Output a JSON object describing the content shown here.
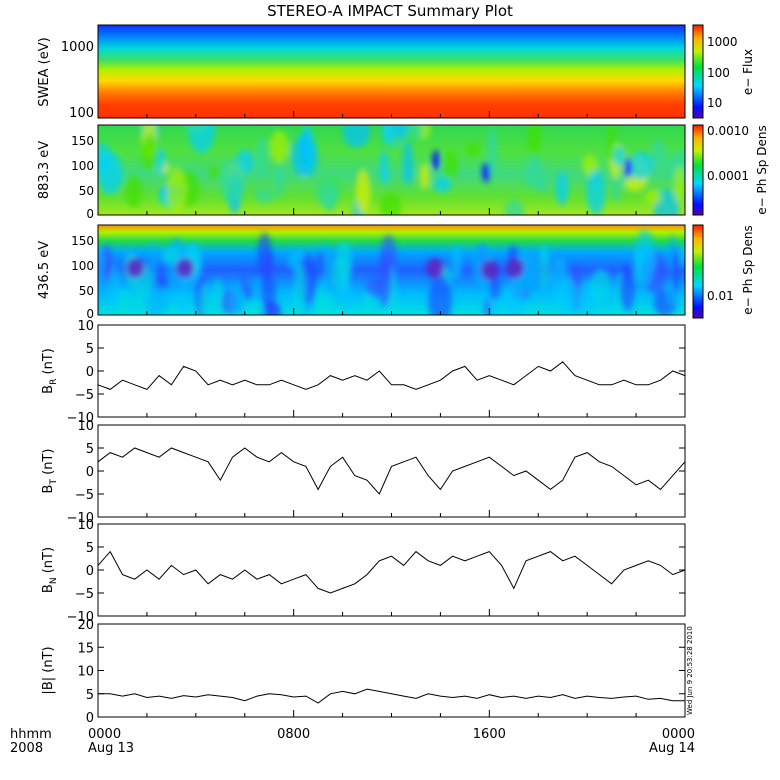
{
  "title": "STEREO-A IMPACT Summary Plot",
  "footer": {
    "time_label": "hhmm",
    "year_label": "2008",
    "x_ticks": [
      {
        "label": "0000",
        "sub": "Aug 13",
        "t": 0
      },
      {
        "label": "0800",
        "sub": "",
        "t": 8
      },
      {
        "label": "1600",
        "sub": "",
        "t": 16
      },
      {
        "label": "0000",
        "sub": "Aug 14",
        "t": 24
      }
    ],
    "timestamp": "Wed Jun 9 20:53:28 2010"
  },
  "chart_data": [
    {
      "id": "swea",
      "type": "heatmap",
      "ylabel": "SWEA (eV)",
      "y_ticks": [
        "1000",
        "100"
      ],
      "colorbar": {
        "label": "e− Flux",
        "ticks": [
          "1000",
          "100",
          "10"
        ]
      }
    },
    {
      "id": "pad883",
      "type": "heatmap",
      "ylabel": "883.3 eV",
      "y_ticks": [
        "150",
        "100",
        "50",
        "0"
      ],
      "ylim": [
        0,
        180
      ],
      "colorbar": {
        "label": "e− Ph Sp Dens",
        "ticks": [
          "0.0010",
          "0.0001"
        ]
      }
    },
    {
      "id": "pad436",
      "type": "heatmap",
      "ylabel": "436.5 eV",
      "y_ticks": [
        "150",
        "100",
        "50",
        "0"
      ],
      "ylim": [
        0,
        180
      ],
      "colorbar": {
        "label": "e− Ph Sp Dens",
        "ticks": [
          "0.01"
        ]
      }
    },
    {
      "id": "br",
      "type": "line",
      "ylabel": "B",
      "ylabel_sub": "R",
      "ylabel_unit": " (nT)",
      "ylim": [
        -10,
        10
      ],
      "y_ticks": [
        "10",
        "5",
        "0",
        "−5",
        "−10"
      ],
      "x": [
        0,
        0.5,
        1,
        1.5,
        2,
        2.5,
        3,
        3.5,
        4,
        4.5,
        5,
        5.5,
        6,
        6.5,
        7,
        7.5,
        8,
        8.5,
        9,
        9.5,
        10,
        10.5,
        11,
        11.5,
        12,
        12.5,
        13,
        13.5,
        14,
        14.5,
        15,
        15.5,
        16,
        16.5,
        17,
        17.5,
        18,
        18.5,
        19,
        19.5,
        20,
        20.5,
        21,
        21.5,
        22,
        22.5,
        23,
        23.5,
        24
      ],
      "y": [
        -3,
        -4,
        -2,
        -3,
        -4,
        -1,
        -3,
        1,
        0,
        -3,
        -2,
        -3,
        -2,
        -3,
        -3,
        -2,
        -3,
        -4,
        -3,
        -1,
        -2,
        -1,
        -2,
        0,
        -3,
        -3,
        -4,
        -3,
        -2,
        0,
        1,
        -2,
        -1,
        -2,
        -3,
        -1,
        1,
        0,
        2,
        -1,
        -2,
        -3,
        -3,
        -2,
        -3,
        -3,
        -2,
        0,
        -1
      ]
    },
    {
      "id": "bt",
      "type": "line",
      "ylabel": "B",
      "ylabel_sub": "T",
      "ylabel_unit": " (nT)",
      "ylim": [
        -10,
        10
      ],
      "y_ticks": [
        "10",
        "5",
        "0",
        "−5",
        "−10"
      ],
      "x": [
        0,
        0.5,
        1,
        1.5,
        2,
        2.5,
        3,
        3.5,
        4,
        4.5,
        5,
        5.5,
        6,
        6.5,
        7,
        7.5,
        8,
        8.5,
        9,
        9.5,
        10,
        10.5,
        11,
        11.5,
        12,
        12.5,
        13,
        13.5,
        14,
        14.5,
        15,
        15.5,
        16,
        16.5,
        17,
        17.5,
        18,
        18.5,
        19,
        19.5,
        20,
        20.5,
        21,
        21.5,
        22,
        22.5,
        23,
        23.5,
        24
      ],
      "y": [
        2,
        4,
        3,
        5,
        4,
        3,
        5,
        4,
        3,
        2,
        -2,
        3,
        5,
        3,
        2,
        4,
        2,
        1,
        -4,
        1,
        3,
        -1,
        -2,
        -5,
        1,
        2,
        3,
        -1,
        -4,
        0,
        1,
        2,
        3,
        1,
        -1,
        0,
        -2,
        -4,
        -2,
        3,
        4,
        2,
        1,
        -1,
        -3,
        -2,
        -4,
        -1,
        2
      ]
    },
    {
      "id": "bn",
      "type": "line",
      "ylabel": "B",
      "ylabel_sub": "N",
      "ylabel_unit": " (nT)",
      "ylim": [
        -10,
        10
      ],
      "y_ticks": [
        "10",
        "5",
        "0",
        "−5",
        "−10"
      ],
      "x": [
        0,
        0.5,
        1,
        1.5,
        2,
        2.5,
        3,
        3.5,
        4,
        4.5,
        5,
        5.5,
        6,
        6.5,
        7,
        7.5,
        8,
        8.5,
        9,
        9.5,
        10,
        10.5,
        11,
        11.5,
        12,
        12.5,
        13,
        13.5,
        14,
        14.5,
        15,
        15.5,
        16,
        16.5,
        17,
        17.5,
        18,
        18.5,
        19,
        19.5,
        20,
        20.5,
        21,
        21.5,
        22,
        22.5,
        23,
        23.5,
        24
      ],
      "y": [
        1,
        4,
        -1,
        -2,
        0,
        -2,
        1,
        -1,
        0,
        -3,
        -1,
        -2,
        0,
        -2,
        -1,
        -3,
        -2,
        -1,
        -4,
        -5,
        -4,
        -3,
        -1,
        2,
        3,
        1,
        4,
        2,
        1,
        3,
        2,
        3,
        4,
        1,
        -4,
        2,
        3,
        4,
        2,
        3,
        1,
        -1,
        -3,
        0,
        1,
        2,
        1,
        -1,
        0
      ]
    },
    {
      "id": "bmag",
      "type": "line",
      "ylabel": "|B| (nT)",
      "ylim": [
        0,
        20
      ],
      "y_ticks": [
        "20",
        "15",
        "10",
        "5",
        "0"
      ],
      "x": [
        0,
        0.5,
        1,
        1.5,
        2,
        2.5,
        3,
        3.5,
        4,
        4.5,
        5,
        5.5,
        6,
        6.5,
        7,
        7.5,
        8,
        8.5,
        9,
        9.5,
        10,
        10.5,
        11,
        11.5,
        12,
        12.5,
        13,
        13.5,
        14,
        14.5,
        15,
        15.5,
        16,
        16.5,
        17,
        17.5,
        18,
        18.5,
        19,
        19.5,
        20,
        20.5,
        21,
        21.5,
        22,
        22.5,
        23,
        23.5,
        24
      ],
      "y": [
        5,
        5,
        4.5,
        5,
        4.2,
        4.5,
        4,
        4.6,
        4.3,
        4.8,
        4.5,
        4.2,
        3.5,
        4.5,
        5,
        4.8,
        4.3,
        4.5,
        3,
        5,
        5.5,
        5,
        6,
        5.5,
        5,
        4.5,
        4,
        5,
        4.5,
        4.2,
        4.5,
        4,
        4.8,
        4.2,
        4.5,
        4,
        4.5,
        4.2,
        4.8,
        4,
        4.5,
        4.2,
        4,
        4.3,
        4.5,
        3.8,
        4,
        3.5,
        3.5
      ]
    }
  ]
}
